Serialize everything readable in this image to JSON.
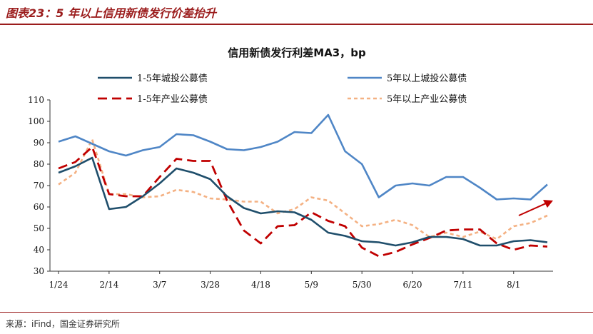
{
  "header": {
    "title": "图表23：5 年以上信用新债发行价差抬升"
  },
  "footer": {
    "source": "来源：iFind，国金证券研究所"
  },
  "colors": {
    "accent": "#9b1c1c",
    "series": [
      "#1f4e6b",
      "#4f86c6",
      "#c00000",
      "#f4b183"
    ]
  },
  "chart_data": {
    "type": "line",
    "title": "信用新债发行利差MA3，bp",
    "xlabel": "",
    "ylabel": "",
    "ylim": [
      30,
      110
    ],
    "yticks": [
      30,
      40,
      50,
      60,
      70,
      80,
      90,
      100,
      110
    ],
    "grid": false,
    "legend_position": "top",
    "x_tick_labels": [
      "1/24",
      "2/14",
      "3/7",
      "3/28",
      "4/18",
      "5/9",
      "5/30",
      "6/20",
      "7/11",
      "8/1"
    ],
    "annotation": "upward arrow",
    "series": [
      {
        "name": "1-5年城投公募债",
        "style": "solid",
        "values": [
          76,
          79,
          83,
          59,
          60,
          65,
          71,
          78,
          76,
          73,
          65,
          59.5,
          57,
          58,
          57.5,
          54,
          48,
          46.5,
          44,
          43.5,
          42,
          43.5,
          46,
          46,
          45,
          42,
          42,
          44,
          44.5,
          43.5
        ]
      },
      {
        "name": "5年以上城投公募债",
        "style": "solid",
        "values": [
          90.5,
          93,
          89.5,
          86,
          84,
          86.5,
          88,
          94,
          93.5,
          90.5,
          87,
          86.5,
          88,
          90.5,
          95,
          94.5,
          103,
          86,
          80,
          64.5,
          70,
          71,
          70,
          74,
          74,
          69,
          63.5,
          64,
          63.5,
          70.5
        ]
      },
      {
        "name": "1-5年产业公募债",
        "style": "dashed",
        "values": [
          78,
          81,
          88,
          66,
          65,
          65,
          74,
          82.5,
          81.5,
          81.5,
          63,
          49,
          43,
          51,
          51.5,
          57.5,
          53.5,
          51,
          41,
          37,
          39,
          42.5,
          45.5,
          49,
          49.5,
          49.5,
          43,
          40,
          42,
          41.5
        ]
      },
      {
        "name": "5年以上产业公募债",
        "style": "dotted",
        "values": [
          70.5,
          76,
          91.5,
          66,
          66,
          64.5,
          65,
          68,
          67,
          64,
          63.5,
          62.5,
          62.5,
          57,
          59,
          64.5,
          63,
          57,
          51,
          52,
          54,
          51.5,
          46,
          48,
          46,
          48.5,
          45,
          51,
          52.5,
          56
        ]
      }
    ]
  }
}
